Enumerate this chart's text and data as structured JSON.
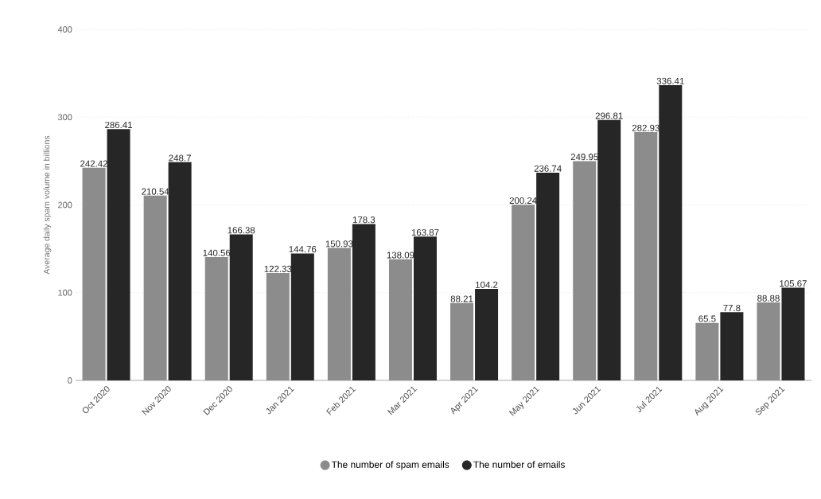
{
  "chart_data": {
    "type": "bar",
    "ylabel": "Average daily spam volume in billions",
    "categories": [
      "Oct 2020",
      "Nov 2020",
      "Dec 2020",
      "Jan 2021",
      "Feb 2021",
      "Mar 2021",
      "Apr 2021",
      "May 2021",
      "Jun 2021",
      "Jul 2021",
      "Aug 2021",
      "Sep 2021"
    ],
    "series": [
      {
        "name": "The number of spam emails",
        "color": "#8c8c8c",
        "values": [
          242.42,
          210.54,
          140.56,
          122.33,
          150.93,
          138.09,
          88.21,
          200.24,
          249.95,
          282.93,
          65.5,
          88.88
        ]
      },
      {
        "name": "The number of emails",
        "color": "#262626",
        "values": [
          286.41,
          248.7,
          166.38,
          144.76,
          178.3,
          163.87,
          104.2,
          236.74,
          296.81,
          336.41,
          77.8,
          105.67
        ]
      }
    ],
    "ylim": [
      0,
      400
    ],
    "yticks": [
      0,
      100,
      200,
      300,
      400
    ],
    "grid": "y",
    "legend": "bottom",
    "data_labels": true
  }
}
